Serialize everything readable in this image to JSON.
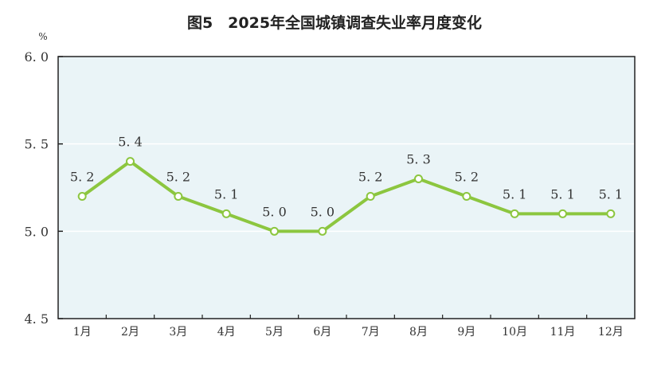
{
  "chart_data": {
    "type": "line",
    "title": "图5　2025年全国城镇调查失业率月度变化",
    "ylabel": "%",
    "xlabel": "",
    "categories": [
      "1月",
      "2月",
      "3月",
      "4月",
      "5月",
      "6月",
      "7月",
      "8月",
      "9月",
      "10月",
      "11月",
      "12月"
    ],
    "series": [
      {
        "name": "全国城镇调查失业率",
        "values": [
          5.2,
          5.4,
          5.2,
          5.1,
          5.0,
          5.0,
          5.2,
          5.3,
          5.2,
          5.1,
          5.1,
          5.1
        ]
      }
    ],
    "ylim": [
      4.5,
      6.0
    ],
    "yticks": [
      "4.5",
      "5.0",
      "5.5",
      "6.0"
    ],
    "data_labels": [
      "5.2",
      "5.4",
      "5.2",
      "5.1",
      "5.0",
      "5.0",
      "5.2",
      "5.3",
      "5.2",
      "5.1",
      "5.1",
      "5.1"
    ],
    "grid": true,
    "colors": {
      "line": "#8cc63f",
      "plot_bg": "#eaf4f7",
      "grid": "#ffffff"
    }
  }
}
